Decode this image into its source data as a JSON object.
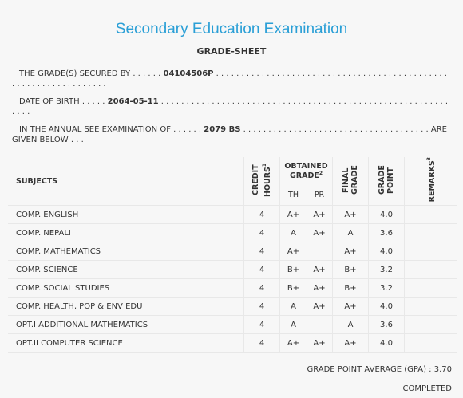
{
  "header": {
    "title": "Secondary Education Examination",
    "subtitle": "GRADE-SHEET"
  },
  "info": [
    {
      "prefix": "THE GRADE(S) SECURED BY . . . . . .",
      "value": "04104506P",
      "suffix": ". . . . . . . . . . . . . . . . . . . . . . . . . . . . . . . . . . . . . . . . . . . . . . . . . . . . . . . . . . . . . . . . ."
    },
    {
      "prefix": "DATE OF BIRTH . . . . .",
      "value": "2064-05-11",
      "suffix": ". . . . . . . . . . . . . . . . . . . . . . . . . . . . . . . . . . . . . . . . . . . . . . . . . . . . . . . . . . . . ."
    },
    {
      "prefix": "IN THE ANNUAL SEE EXAMINATION OF . . . . . .",
      "value": "2079 BS",
      "suffix": ". . . . . . . . . . . . . . . . . . . . . . . . . . . . . . . . . . . . . ARE GIVEN BELOW . . ."
    }
  ],
  "table": {
    "headers": {
      "subjects": "SUBJECTS",
      "credit_hours": {
        "label": "CREDIT HOURS",
        "sup": "1"
      },
      "obtained_grade": {
        "label": "OBTAINED GRADE",
        "sup": "2"
      },
      "th": "TH",
      "pr": "PR",
      "final_grade": "FINAL GRADE",
      "grade_point": "GRADE POINT",
      "remarks": {
        "label": "REMARKS",
        "sup": "3"
      }
    },
    "rows": [
      [
        "COMP. ENGLISH",
        4,
        "A+",
        "A+",
        "A+",
        "4.0",
        null
      ],
      [
        "COMP. NEPALI",
        4,
        "A",
        "A+",
        "A",
        "3.6",
        null
      ],
      [
        "COMP. MATHEMATICS",
        4,
        "A+",
        null,
        "A+",
        "4.0",
        null
      ],
      [
        "COMP. SCIENCE",
        4,
        "B+",
        "A+",
        "B+",
        "3.2",
        null
      ],
      [
        "COMP. SOCIAL STUDIES",
        4,
        "B+",
        "A+",
        "B+",
        "3.2",
        null
      ],
      [
        "COMP. HEALTH, POP & ENV EDU",
        4,
        "A",
        "A+",
        "A+",
        "4.0",
        null
      ],
      [
        "OPT.I ADDITIONAL MATHEMATICS",
        4,
        "A",
        null,
        "A",
        "3.6",
        null
      ],
      [
        "OPT.II COMPUTER SCIENCE",
        4,
        "A+",
        "A+",
        "A+",
        "4.0",
        null
      ]
    ]
  },
  "footer": {
    "gpa_label": "GRADE POINT AVERAGE (GPA) :",
    "gpa": "3.70",
    "status": "COMPLETED"
  }
}
